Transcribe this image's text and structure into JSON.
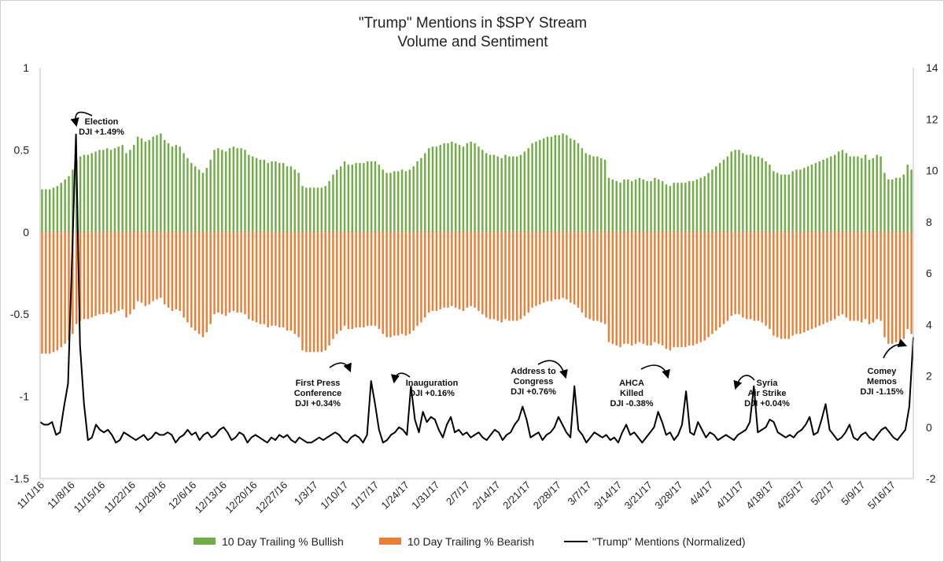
{
  "chart_data": {
    "type": "bar+line",
    "title": [
      "\"Trump\" Mentions in $SPY Stream",
      "Volume and Sentiment"
    ],
    "left_axis": {
      "ylim": [
        -1.5,
        1
      ],
      "ticks": [
        "1",
        "0.5",
        "0",
        "-0.5",
        "-1",
        "-1.5"
      ]
    },
    "right_axis": {
      "ylim": [
        -2,
        14
      ],
      "ticks": [
        "14",
        "12",
        "10",
        "8",
        "6",
        "4",
        "2",
        "0",
        "-2"
      ]
    },
    "x_labels": [
      "11/1/16",
      "11/8/16",
      "11/15/16",
      "11/22/16",
      "11/29/16",
      "12/6/16",
      "12/13/16",
      "12/20/16",
      "12/27/16",
      "1/3/17",
      "1/10/17",
      "1/17/17",
      "1/24/17",
      "1/31/17",
      "2/7/17",
      "2/14/17",
      "2/21/17",
      "2/28/17",
      "3/7/17",
      "3/14/17",
      "3/21/17",
      "3/28/17",
      "4/4/17",
      "4/11/17",
      "4/18/17",
      "4/25/17",
      "5/2/17",
      "5/9/17",
      "5/16/17"
    ],
    "series": [
      {
        "name": "10 Day Trailing % Bullish",
        "color": "#70ad47",
        "axis": "left",
        "values": [
          0.26,
          0.26,
          0.26,
          0.27,
          0.28,
          0.3,
          0.32,
          0.34,
          0.38,
          0.44,
          0.46,
          0.47,
          0.47,
          0.48,
          0.49,
          0.5,
          0.5,
          0.51,
          0.5,
          0.51,
          0.52,
          0.53,
          0.48,
          0.5,
          0.53,
          0.58,
          0.57,
          0.55,
          0.56,
          0.58,
          0.59,
          0.6,
          0.56,
          0.54,
          0.52,
          0.53,
          0.52,
          0.48,
          0.45,
          0.42,
          0.4,
          0.38,
          0.36,
          0.39,
          0.44,
          0.5,
          0.51,
          0.5,
          0.49,
          0.51,
          0.52,
          0.51,
          0.51,
          0.5,
          0.47,
          0.46,
          0.45,
          0.44,
          0.44,
          0.42,
          0.43,
          0.43,
          0.42,
          0.42,
          0.4,
          0.4,
          0.38,
          0.36,
          0.28,
          0.27,
          0.27,
          0.27,
          0.27,
          0.27,
          0.28,
          0.31,
          0.35,
          0.38,
          0.4,
          0.43,
          0.41,
          0.41,
          0.42,
          0.42,
          0.42,
          0.43,
          0.43,
          0.43,
          0.41,
          0.38,
          0.36,
          0.36,
          0.37,
          0.37,
          0.38,
          0.37,
          0.38,
          0.4,
          0.43,
          0.45,
          0.48,
          0.51,
          0.52,
          0.52,
          0.53,
          0.54,
          0.54,
          0.55,
          0.54,
          0.53,
          0.52,
          0.54,
          0.55,
          0.54,
          0.52,
          0.5,
          0.48,
          0.47,
          0.47,
          0.46,
          0.45,
          0.47,
          0.46,
          0.46,
          0.46,
          0.47,
          0.49,
          0.51,
          0.54,
          0.55,
          0.56,
          0.57,
          0.58,
          0.58,
          0.59,
          0.59,
          0.6,
          0.59,
          0.57,
          0.56,
          0.54,
          0.51,
          0.48,
          0.47,
          0.46,
          0.46,
          0.45,
          0.44,
          0.33,
          0.32,
          0.31,
          0.3,
          0.32,
          0.32,
          0.31,
          0.32,
          0.33,
          0.32,
          0.31,
          0.31,
          0.33,
          0.32,
          0.31,
          0.29,
          0.28,
          0.3,
          0.3,
          0.3,
          0.3,
          0.31,
          0.31,
          0.32,
          0.33,
          0.34,
          0.36,
          0.38,
          0.4,
          0.42,
          0.44,
          0.46,
          0.49,
          0.5,
          0.5,
          0.48,
          0.47,
          0.47,
          0.46,
          0.46,
          0.45,
          0.43,
          0.41,
          0.37,
          0.36,
          0.35,
          0.35,
          0.35,
          0.37,
          0.38,
          0.38,
          0.39,
          0.4,
          0.41,
          0.42,
          0.43,
          0.44,
          0.45,
          0.46,
          0.47,
          0.49,
          0.5,
          0.48,
          0.46,
          0.46,
          0.46,
          0.45,
          0.47,
          0.44,
          0.45,
          0.47,
          0.46,
          0.36,
          0.32,
          0.32,
          0.33,
          0.33,
          0.35,
          0.41,
          0.38
        ],
        "values_count_note": ""
      },
      {
        "name": "10 Day Trailing % Bearish",
        "color": "#ed7d31",
        "axis": "left",
        "values": [
          -0.74,
          -0.74,
          -0.74,
          -0.73,
          -0.72,
          -0.7,
          -0.68,
          -0.66,
          -0.62,
          -0.56,
          -0.54,
          -0.53,
          -0.53,
          -0.52,
          -0.51,
          -0.5,
          -0.5,
          -0.49,
          -0.5,
          -0.49,
          -0.48,
          -0.47,
          -0.52,
          -0.5,
          -0.47,
          -0.42,
          -0.43,
          -0.45,
          -0.44,
          -0.42,
          -0.41,
          -0.4,
          -0.44,
          -0.46,
          -0.48,
          -0.47,
          -0.48,
          -0.52,
          -0.55,
          -0.58,
          -0.6,
          -0.62,
          -0.64,
          -0.61,
          -0.56,
          -0.5,
          -0.49,
          -0.5,
          -0.51,
          -0.49,
          -0.48,
          -0.49,
          -0.49,
          -0.5,
          -0.53,
          -0.54,
          -0.55,
          -0.56,
          -0.56,
          -0.58,
          -0.57,
          -0.57,
          -0.58,
          -0.58,
          -0.6,
          -0.6,
          -0.62,
          -0.64,
          -0.72,
          -0.73,
          -0.73,
          -0.73,
          -0.73,
          -0.73,
          -0.72,
          -0.69,
          -0.65,
          -0.62,
          -0.6,
          -0.57,
          -0.59,
          -0.59,
          -0.58,
          -0.58,
          -0.58,
          -0.57,
          -0.57,
          -0.57,
          -0.59,
          -0.62,
          -0.64,
          -0.64,
          -0.63,
          -0.63,
          -0.62,
          -0.63,
          -0.62,
          -0.6,
          -0.57,
          -0.55,
          -0.52,
          -0.49,
          -0.48,
          -0.48,
          -0.47,
          -0.46,
          -0.46,
          -0.45,
          -0.46,
          -0.47,
          -0.48,
          -0.46,
          -0.45,
          -0.46,
          -0.48,
          -0.5,
          -0.52,
          -0.53,
          -0.53,
          -0.54,
          -0.55,
          -0.53,
          -0.54,
          -0.54,
          -0.54,
          -0.53,
          -0.51,
          -0.49,
          -0.46,
          -0.45,
          -0.44,
          -0.43,
          -0.42,
          -0.42,
          -0.41,
          -0.41,
          -0.4,
          -0.41,
          -0.43,
          -0.44,
          -0.46,
          -0.49,
          -0.52,
          -0.53,
          -0.54,
          -0.54,
          -0.55,
          -0.56,
          -0.67,
          -0.68,
          -0.69,
          -0.7,
          -0.68,
          -0.68,
          -0.69,
          -0.68,
          -0.67,
          -0.68,
          -0.69,
          -0.69,
          -0.67,
          -0.68,
          -0.69,
          -0.71,
          -0.72,
          -0.7,
          -0.7,
          -0.7,
          -0.7,
          -0.69,
          -0.69,
          -0.68,
          -0.67,
          -0.66,
          -0.64,
          -0.62,
          -0.6,
          -0.58,
          -0.56,
          -0.54,
          -0.51,
          -0.5,
          -0.5,
          -0.52,
          -0.53,
          -0.53,
          -0.54,
          -0.54,
          -0.55,
          -0.57,
          -0.59,
          -0.63,
          -0.64,
          -0.65,
          -0.65,
          -0.65,
          -0.63,
          -0.62,
          -0.62,
          -0.61,
          -0.6,
          -0.59,
          -0.58,
          -0.57,
          -0.56,
          -0.55,
          -0.54,
          -0.53,
          -0.51,
          -0.5,
          -0.52,
          -0.54,
          -0.54,
          -0.54,
          -0.55,
          -0.53,
          -0.56,
          -0.55,
          -0.53,
          -0.54,
          -0.64,
          -0.68,
          -0.68,
          -0.67,
          -0.67,
          -0.65,
          -0.59,
          -0.62
        ]
      },
      {
        "name": "\"Trump\" Mentions (Normalized)",
        "color": "#000000",
        "axis": "right",
        "values": [
          0.2,
          0.1,
          0.1,
          0.2,
          -0.3,
          -0.2,
          0.8,
          1.7,
          6.5,
          11.4,
          3.2,
          0.9,
          -0.5,
          -0.4,
          0.1,
          -0.1,
          -0.2,
          -0.1,
          -0.3,
          -0.6,
          -0.5,
          -0.2,
          -0.3,
          -0.4,
          -0.5,
          -0.4,
          -0.3,
          -0.5,
          -0.4,
          -0.2,
          -0.3,
          -0.3,
          -0.2,
          -0.3,
          -0.6,
          -0.4,
          -0.3,
          -0.1,
          -0.3,
          -0.2,
          -0.5,
          -0.3,
          -0.2,
          -0.4,
          -0.3,
          -0.1,
          0.0,
          -0.2,
          -0.5,
          -0.4,
          -0.2,
          -0.3,
          -0.6,
          -0.4,
          -0.3,
          -0.4,
          -0.5,
          -0.6,
          -0.4,
          -0.5,
          -0.3,
          -0.4,
          -0.3,
          -0.5,
          -0.6,
          -0.4,
          -0.5,
          -0.6,
          -0.6,
          -0.5,
          -0.4,
          -0.5,
          -0.4,
          -0.3,
          -0.2,
          -0.3,
          -0.5,
          -0.6,
          -0.4,
          -0.3,
          -0.4,
          -0.6,
          -0.3,
          1.8,
          0.9,
          -0.1,
          -0.6,
          -0.5,
          -0.3,
          -0.2,
          0.0,
          -0.1,
          -0.3,
          1.6,
          0.3,
          -0.2,
          0.6,
          0.2,
          0.4,
          0.3,
          -0.1,
          -0.4,
          0.1,
          0.4,
          -0.2,
          -0.1,
          -0.3,
          -0.2,
          -0.4,
          -0.3,
          -0.2,
          -0.4,
          -0.5,
          -0.3,
          -0.1,
          -0.2,
          -0.5,
          -0.3,
          -0.2,
          0.1,
          0.3,
          0.8,
          0.3,
          -0.4,
          -0.3,
          -0.2,
          -0.5,
          -0.3,
          -0.2,
          0.0,
          0.4,
          0.1,
          -0.2,
          -0.4,
          1.6,
          -0.1,
          -0.3,
          -0.6,
          -0.4,
          -0.2,
          -0.3,
          -0.4,
          -0.3,
          -0.5,
          -0.4,
          -0.6,
          -0.2,
          0.1,
          -0.3,
          -0.2,
          -0.4,
          -0.6,
          -0.4,
          -0.2,
          0.0,
          0.6,
          0.2,
          -0.3,
          -0.2,
          -0.5,
          -0.3,
          0.1,
          1.4,
          -0.2,
          -0.3,
          0.2,
          -0.1,
          -0.4,
          -0.2,
          -0.3,
          -0.5,
          -0.4,
          -0.3,
          -0.4,
          -0.5,
          -0.3,
          -0.2,
          -0.1,
          0.2,
          1.6,
          -0.2,
          -0.1,
          0.0,
          0.3,
          0.2,
          -0.2,
          -0.3,
          -0.4,
          -0.3,
          -0.4,
          -0.2,
          -0.1,
          0.1,
          0.4,
          -0.3,
          -0.2,
          0.3,
          0.9,
          -0.1,
          -0.3,
          -0.5,
          -0.4,
          -0.2,
          0.1,
          -0.4,
          -0.5,
          -0.3,
          -0.2,
          -0.4,
          -0.5,
          -0.3,
          -0.1,
          0.0,
          -0.2,
          -0.4,
          -0.5,
          -0.3,
          -0.1,
          0.8,
          3.5
        ]
      }
    ],
    "annotations": [
      {
        "lines": [
          "Election",
          "DJI +1.49%"
        ]
      },
      {
        "lines": [
          "First Press",
          "Conference",
          "DJI +0.34%"
        ]
      },
      {
        "lines": [
          "Inauguration",
          "DJI +0.16%"
        ]
      },
      {
        "lines": [
          "Address to",
          "Congress",
          "DJI +0.76%"
        ]
      },
      {
        "lines": [
          "AHCA",
          "Killed",
          "DJI -0.38%"
        ]
      },
      {
        "lines": [
          "Syria",
          "Air Strike",
          "DJI +0.04%"
        ]
      },
      {
        "lines": [
          "Comey",
          "Memos",
          "DJI -1.15%"
        ]
      }
    ],
    "legend": [
      "10 Day Trailing % Bullish",
      "10 Day Trailing % Bearish",
      "\"Trump\" Mentions (Normalized)"
    ]
  }
}
